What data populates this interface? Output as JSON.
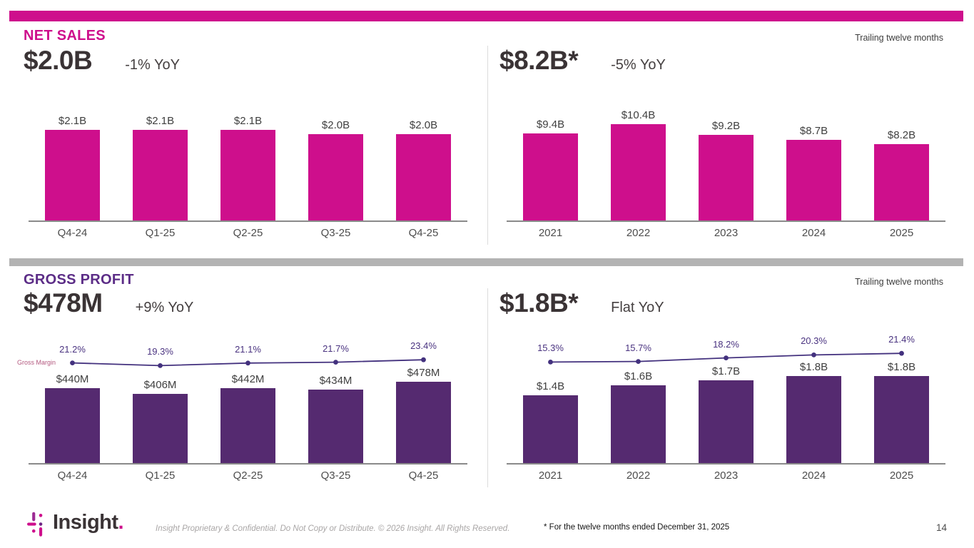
{
  "brand": {
    "magenta": "#CE0F8C",
    "bar_purple": "#552A70",
    "heading_purple": "#5C2D87",
    "line_purple": "#43317E",
    "divider_gray": "#B3B3B3"
  },
  "sections": {
    "net_sales": {
      "title": "NET SALES",
      "ttm_label": "Trailing twelve months",
      "left": {
        "headline": "$2.0B",
        "yoy": "-1% YoY"
      },
      "right": {
        "headline": "$8.2B*",
        "yoy": "-5% YoY"
      }
    },
    "gross_profit": {
      "title": "GROSS PROFIT",
      "ttm_label": "Trailing twelve months",
      "left": {
        "headline": "$478M",
        "yoy": "+9% YoY"
      },
      "right": {
        "headline": "$1.8B*",
        "yoy": "Flat YoY"
      },
      "margin_line_label": "Gross Margin"
    }
  },
  "chart_data": [
    {
      "type": "bar",
      "title": "Net sales by quarter",
      "categories": [
        "Q4-24",
        "Q1-25",
        "Q2-25",
        "Q3-25",
        "Q4-25"
      ],
      "values": [
        2.1,
        2.1,
        2.1,
        2.0,
        2.0
      ],
      "bar_labels": [
        "$2.1B",
        "$2.1B",
        "$2.1B",
        "$2.0B",
        "$2.0B"
      ],
      "unit": "$B",
      "bar_color": "#CE0F8C",
      "ylim": [
        0,
        2.4
      ],
      "grid": false,
      "legend": "none"
    },
    {
      "type": "bar",
      "title": "Net sales trailing twelve months",
      "categories": [
        "2021",
        "2022",
        "2023",
        "2024",
        "2025"
      ],
      "values": [
        9.4,
        10.4,
        9.2,
        8.7,
        8.2
      ],
      "bar_labels": [
        "$9.4B",
        "$10.4B",
        "$9.2B",
        "$8.7B",
        "$8.2B"
      ],
      "unit": "$B",
      "bar_color": "#CE0F8C",
      "ylim": [
        0,
        12
      ],
      "grid": false,
      "legend": "none"
    },
    {
      "type": "bar+line",
      "title": "Gross profit by quarter",
      "categories": [
        "Q4-24",
        "Q1-25",
        "Q2-25",
        "Q3-25",
        "Q4-25"
      ],
      "values": [
        440,
        406,
        442,
        434,
        478
      ],
      "bar_labels": [
        "$440M",
        "$406M",
        "$442M",
        "$434M",
        "$478M"
      ],
      "unit": "$M",
      "bar_color": "#552A70",
      "ylim": [
        0,
        780
      ],
      "grid": false,
      "line": {
        "name": "Gross Margin",
        "values": [
          21.2,
          19.3,
          21.1,
          21.7,
          23.4
        ],
        "labels": [
          "21.2%",
          "19.3%",
          "21.1%",
          "21.7%",
          "23.4%"
        ],
        "unit": "%",
        "color": "#43317E"
      }
    },
    {
      "type": "bar+line",
      "title": "Gross profit trailing twelve months",
      "categories": [
        "2021",
        "2022",
        "2023",
        "2024",
        "2025"
      ],
      "values": [
        1.4,
        1.6,
        1.7,
        1.8,
        1.8
      ],
      "bar_labels": [
        "$1.4B",
        "$1.6B",
        "$1.7B",
        "$1.8B",
        "$1.8B"
      ],
      "unit": "$B",
      "bar_color": "#552A70",
      "ylim": [
        0,
        2.7
      ],
      "grid": false,
      "line": {
        "name": "Gross Margin",
        "values": [
          15.3,
          15.7,
          18.2,
          20.3,
          21.4
        ],
        "labels": [
          "15.3%",
          "15.7%",
          "18.2%",
          "20.3%",
          "21.4%"
        ],
        "unit": "%",
        "color": "#43317E"
      }
    }
  ],
  "footer": {
    "logo_text": "Insight",
    "logo_period": ".",
    "confidential": "Insight Proprietary & Confidential. Do Not Copy or Distribute. © 2026 Insight. All Rights Reserved.",
    "footnote": "* For the twelve months ended December 31, 2025",
    "page_number": "14"
  }
}
